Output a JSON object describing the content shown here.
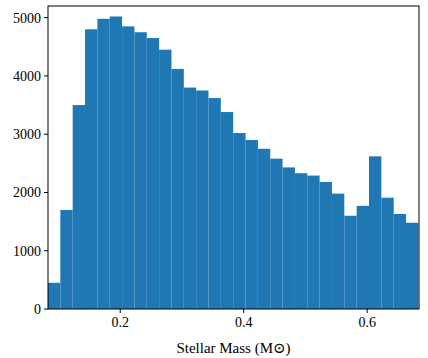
{
  "chart_data": {
    "type": "histogram",
    "xlabel": "Stellar Mass (M⊙)",
    "bins": [
      0.083,
      0.103,
      0.123,
      0.143,
      0.163,
      0.183,
      0.203,
      0.223,
      0.243,
      0.263,
      0.283,
      0.303,
      0.323,
      0.343,
      0.363,
      0.383,
      0.403,
      0.423,
      0.443,
      0.463,
      0.483,
      0.503,
      0.523,
      0.543,
      0.563,
      0.583,
      0.603,
      0.623,
      0.643,
      0.663,
      0.683
    ],
    "values": [
      450,
      1700,
      3500,
      4800,
      4980,
      5020,
      4850,
      4750,
      4650,
      4450,
      4120,
      3800,
      3750,
      3620,
      3380,
      3020,
      2900,
      2750,
      2580,
      2430,
      2330,
      2290,
      2180,
      1980,
      1600,
      1770,
      2620,
      1910,
      1630,
      1480
    ],
    "color": "#1f77b4",
    "xlim": [
      0.083,
      0.684
    ],
    "xticks": [
      {
        "value": 0.2,
        "label": "0.2"
      },
      {
        "value": 0.4,
        "label": "0.4"
      },
      {
        "value": 0.6,
        "label": "0.6"
      }
    ],
    "ylim": [
      0,
      5200
    ],
    "yticks": [
      0,
      1000,
      2000,
      3000,
      4000,
      5000
    ],
    "grid": false
  }
}
